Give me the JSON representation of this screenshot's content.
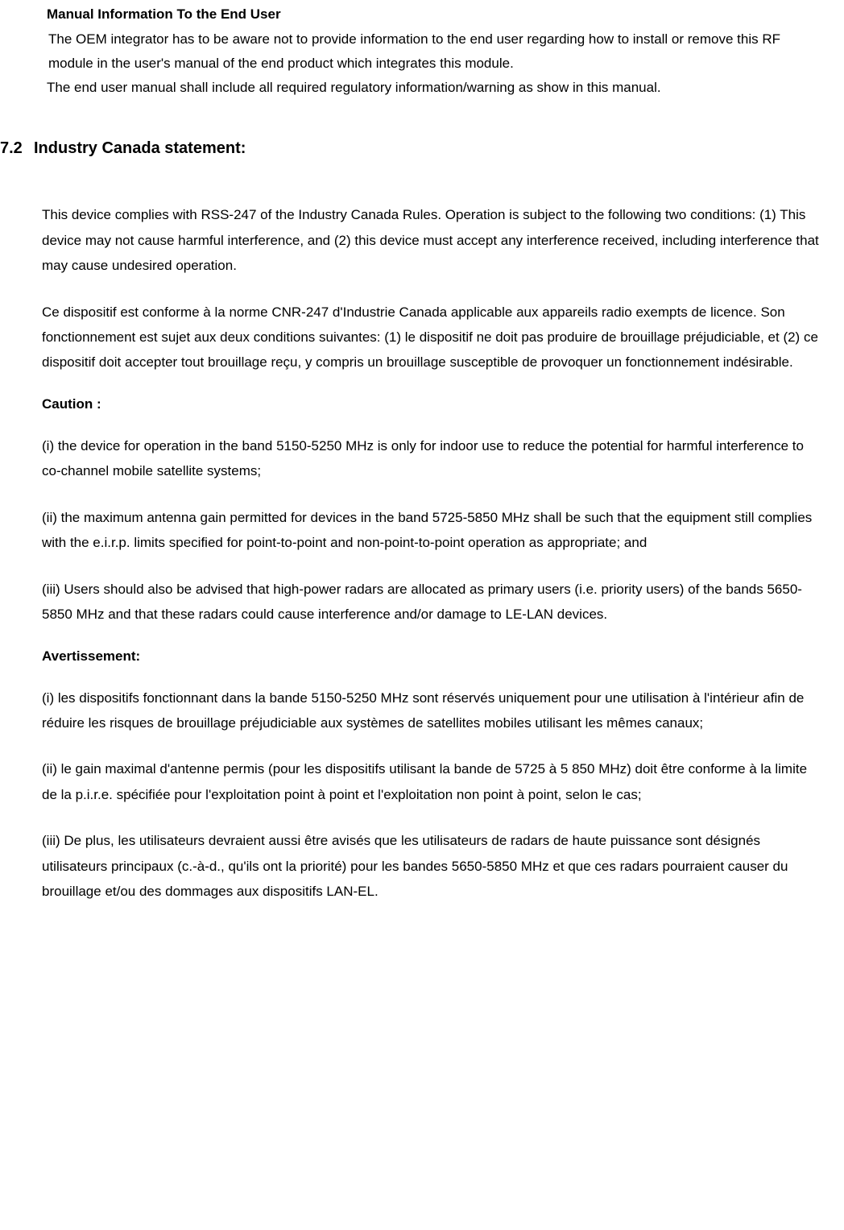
{
  "manual": {
    "heading": "Manual Information To the End User",
    "p1": "The OEM integrator has to be aware not to provide information to the end user regarding how to install or remove this RF module in the user's manual of the end product which integrates this module.",
    "p2": "The end user manual shall include all required regulatory information/warning as show in this manual."
  },
  "section": {
    "number": "7.2",
    "title": "Industry Canada statement:"
  },
  "body": {
    "p1": "This device complies with RSS-247 of the Industry Canada Rules. Operation is subject to the following two conditions: (1) This device may not cause harmful interference, and (2) this device must accept any interference received, including interference that may cause undesired operation.",
    "p2": "Ce dispositif est conforme à la norme CNR-247 d'Industrie Canada applicable aux appareils radio exempts de licence. Son fonctionnement est sujet aux deux conditions suivantes: (1) le dispositif ne doit pas produire de brouillage préjudiciable, et (2) ce dispositif doit accepter tout brouillage reçu, y compris un brouillage susceptible de provoquer un fonctionnement indésirable.",
    "caution_label": "Caution :",
    "c1": "(i) the device for operation in the band 5150-5250 MHz is only for indoor use to reduce the potential for harmful interference to co-channel mobile satellite systems;",
    "c2": "(ii) the maximum antenna gain permitted for devices in the band 5725-5850 MHz shall be such that the equipment still complies with the e.i.r.p. limits specified for point-to-point and non-point-to-point operation as appropriate; and",
    "c3": "(iii) Users should also be advised that high-power radars are allocated as primary users (i.e. priority users) of the bands 5650-5850 MHz and that these radars could cause interference and/or damage to LE-LAN devices.",
    "avert_label": "Avertissement:",
    "a1": "(i) les dispositifs fonctionnant dans la bande 5150-5250 MHz sont réservés uniquement pour une utilisation à l'intérieur afin de réduire les risques de brouillage préjudiciable aux systèmes de satellites mobiles utilisant les mêmes canaux;",
    "a2": "(ii) le gain maximal d'antenne permis (pour les dispositifs utilisant la bande de 5725 à 5 850 MHz) doit être conforme à la limite de la p.i.r.e. spécifiée pour l'exploitation point à point et l'exploitation non point à point, selon le cas;",
    "a3": "(iii) De plus, les utilisateurs devraient aussi être avisés que les utilisateurs de radars de haute puissance sont désignés utilisateurs principaux (c.-à-d., qu'ils ont la priorité) pour les bandes 5650-5850 MHz et que ces radars pourraient causer du brouillage et/ou des dommages aux dispositifs LAN-EL."
  },
  "style": {
    "background_color": "#ffffff",
    "text_color": "#000000",
    "body_fontsize": 17,
    "heading_fontsize": 20,
    "line_height": 1.85
  }
}
